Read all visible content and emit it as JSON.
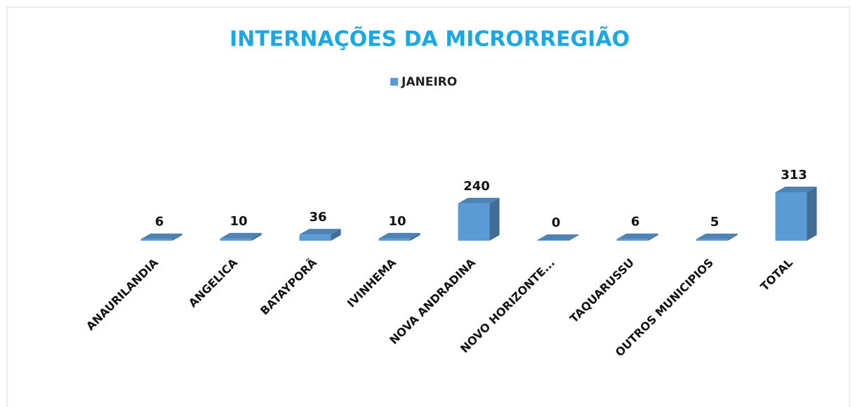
{
  "chart_data": {
    "type": "bar3d",
    "title": "INTERNAÇÕES DA MICRORREGIÃO",
    "categories": [
      "ANAURILANDIA",
      "ANGELICA",
      "BATAYPORÃ",
      "IVINHEMA",
      "NOVA ANDRADINA",
      "NOVO HORIZONTE...",
      "TAQUARUSSU",
      "OUTROS MUNICIPIOS",
      "TOTAL"
    ],
    "series": [
      {
        "name": "JANEIRO",
        "color": "#5b9bd5",
        "values": [
          6,
          10,
          36,
          10,
          240,
          0,
          6,
          5,
          313
        ]
      }
    ]
  }
}
